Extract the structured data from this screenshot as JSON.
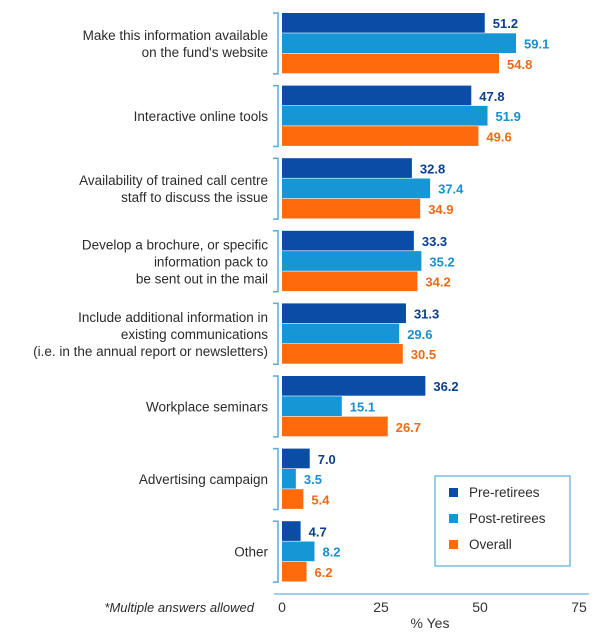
{
  "chart_data": {
    "type": "bar",
    "orientation": "horizontal",
    "title": "",
    "xlabel": "% Yes",
    "ylabel": "",
    "xlim": [
      0,
      75
    ],
    "xticks": [
      0,
      25,
      50,
      75
    ],
    "grid": false,
    "legend_position": "bottom-right",
    "note": "*Multiple answers allowed",
    "categories": [
      [
        "Make this information available",
        "on the fund's website"
      ],
      [
        "Interactive online tools"
      ],
      [
        "Availability of trained call centre",
        "staff to discuss the issue"
      ],
      [
        "Develop a brochure, or specific",
        "information pack to",
        "be sent out in the mail"
      ],
      [
        "Include additional information in",
        "existing communications",
        "(i.e. in the annual report or newsletters)"
      ],
      [
        "Workplace seminars"
      ],
      [
        "Advertising campaign"
      ],
      [
        "Other"
      ]
    ],
    "series": [
      {
        "name": "Pre-retirees",
        "color": "#0a4da6",
        "label_color": "#0a3f8c",
        "values": [
          51.2,
          47.8,
          32.8,
          33.3,
          31.3,
          36.2,
          7.0,
          4.7
        ]
      },
      {
        "name": "Post-retirees",
        "color": "#1796d6",
        "label_color": "#1a8fcc",
        "values": [
          59.1,
          51.9,
          37.4,
          35.2,
          29.6,
          15.1,
          3.5,
          8.2
        ]
      },
      {
        "name": "Overall",
        "color": "#ff6a0d",
        "label_color": "#f06a16",
        "values": [
          54.8,
          49.6,
          34.9,
          34.2,
          30.5,
          26.7,
          5.4,
          6.2
        ]
      }
    ],
    "bracket_color": "#5aaad6",
    "axis_color": "#7cc0e0"
  }
}
